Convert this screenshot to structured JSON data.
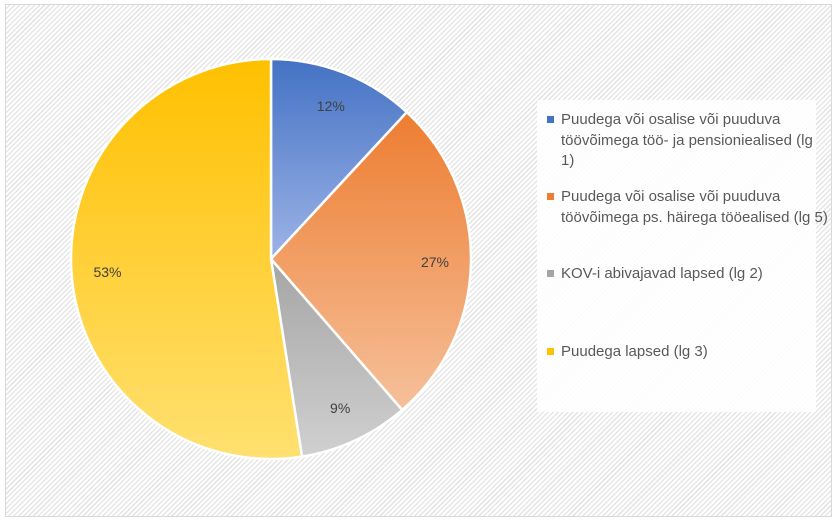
{
  "chart_data": {
    "type": "pie",
    "title": "",
    "categories": [
      "Puudega või osalise või puuduva töövõimega töö- ja pensioniealised (lg 1)",
      "Puudega või osalise või puuduva töövõimega ps. häirega tööealised (lg 5)",
      "KOV-i abivajavad lapsed (lg 2)",
      "Puudega lapsed (lg 3)"
    ],
    "values": [
      12,
      27,
      9,
      53
    ],
    "data_labels": [
      "12%",
      "27%",
      "9%",
      "53%"
    ],
    "colors": [
      "#4472c4",
      "#ed7d31",
      "#a5a5a5",
      "#ffc000"
    ],
    "legend_position": "right",
    "start_angle": "12 o'clock, clockwise"
  },
  "legend": {
    "items": [
      {
        "label": "Puudega või osalise või puuduva töövõimega töö- ja pensioniealised (lg 1)",
        "color": "#4472c4"
      },
      {
        "label": "Puudega või osalise või puuduva töövõimega ps. häirega tööealised (lg 5)",
        "color": "#ed7d31"
      },
      {
        "label": "KOV-i abivajavad lapsed (lg 2)",
        "color": "#a5a5a5"
      },
      {
        "label": "Puudega lapsed (lg 3)",
        "color": "#ffc000"
      }
    ]
  }
}
